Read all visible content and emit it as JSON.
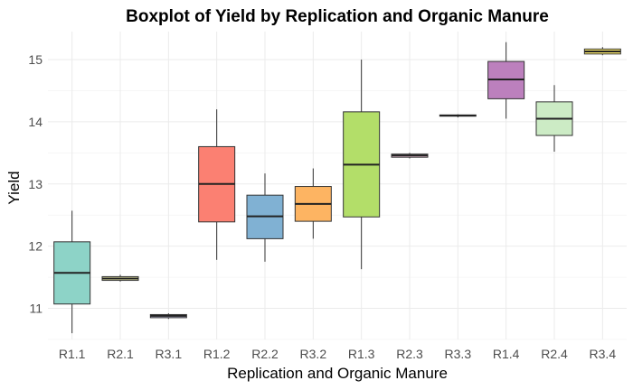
{
  "chart_data": {
    "type": "boxplot",
    "title": "Boxplot of Yield by Replication and Organic Manure",
    "xlabel": "Replication and Organic Manure",
    "ylabel": "Yield",
    "ylim": [
      10.5,
      15.45
    ],
    "yticks": [
      11,
      12,
      13,
      14,
      15
    ],
    "grid": true,
    "categories": [
      "R1.1",
      "R2.1",
      "R3.1",
      "R1.2",
      "R2.2",
      "R3.2",
      "R1.3",
      "R2.3",
      "R3.3",
      "R1.4",
      "R2.4",
      "R3.4"
    ],
    "boxes": [
      {
        "category": "R1.1",
        "min": 10.6,
        "q1": 11.07,
        "median": 11.57,
        "q3": 12.07,
        "max": 12.57,
        "color": "#8dd3c7"
      },
      {
        "category": "R2.1",
        "min": 11.43,
        "q1": 11.45,
        "median": 11.48,
        "q3": 11.51,
        "max": 11.54,
        "color": "#ffffb3"
      },
      {
        "category": "R3.1",
        "min": 10.83,
        "q1": 10.85,
        "median": 10.88,
        "q3": 10.9,
        "max": 10.92,
        "color": "#bebada"
      },
      {
        "category": "R1.2",
        "min": 11.78,
        "q1": 12.39,
        "median": 13.0,
        "q3": 13.6,
        "max": 14.2,
        "color": "#fb8072"
      },
      {
        "category": "R2.2",
        "min": 11.75,
        "q1": 12.12,
        "median": 12.48,
        "q3": 12.82,
        "max": 13.17,
        "color": "#80b1d3"
      },
      {
        "category": "R3.2",
        "min": 12.12,
        "q1": 12.4,
        "median": 12.68,
        "q3": 12.96,
        "max": 13.25,
        "color": "#fdb462"
      },
      {
        "category": "R1.3",
        "min": 11.63,
        "q1": 12.47,
        "median": 13.31,
        "q3": 14.16,
        "max": 15.0,
        "color": "#b3de69"
      },
      {
        "category": "R2.3",
        "min": 13.41,
        "q1": 13.43,
        "median": 13.46,
        "q3": 13.48,
        "max": 13.5,
        "color": "#fccde5"
      },
      {
        "category": "R3.3",
        "min": 14.07,
        "q1": 14.09,
        "median": 14.1,
        "q3": 14.11,
        "max": 14.12,
        "color": "#d9d9d9"
      },
      {
        "category": "R1.4",
        "min": 14.05,
        "q1": 14.37,
        "median": 14.68,
        "q3": 14.97,
        "max": 15.28,
        "color": "#bc80bd"
      },
      {
        "category": "R2.4",
        "min": 13.52,
        "q1": 13.78,
        "median": 14.05,
        "q3": 14.32,
        "max": 14.59,
        "color": "#ccebc5"
      },
      {
        "category": "R3.4",
        "min": 15.07,
        "q1": 15.09,
        "median": 15.13,
        "q3": 15.17,
        "max": 15.2,
        "color": "#ffed6f"
      }
    ]
  }
}
